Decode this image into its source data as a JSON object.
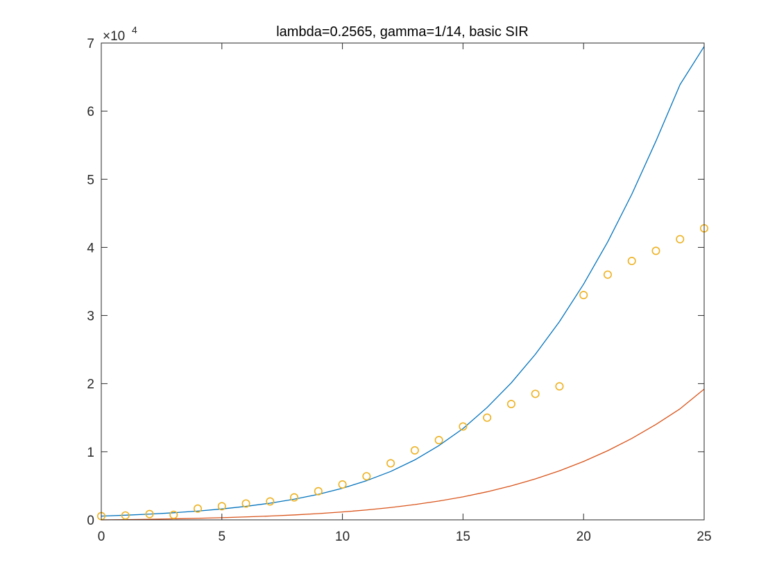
{
  "chart_data": {
    "type": "line",
    "title": "lambda=0.2565, gamma=1/14, basic SIR",
    "xlabel": "",
    "ylabel": "",
    "xlim": [
      0,
      25
    ],
    "ylim": [
      0,
      70000
    ],
    "x_ticks": [
      0,
      5,
      10,
      15,
      20,
      25
    ],
    "y_ticks": [
      0,
      10000,
      20000,
      30000,
      40000,
      50000,
      60000,
      70000
    ],
    "y_tick_labels": [
      "0",
      "1",
      "2",
      "3",
      "4",
      "5",
      "6",
      "7"
    ],
    "y_exponent": {
      "base": "×10",
      "power": "4"
    },
    "grid": false,
    "box": true,
    "series": [
      {
        "style": "line",
        "color": "#0072BD",
        "x": [
          0,
          1,
          2,
          3,
          4,
          5,
          6,
          7,
          8,
          9,
          10,
          11,
          12,
          13,
          14,
          15,
          16,
          17,
          18,
          19,
          20,
          21,
          22,
          23,
          24,
          25
        ],
        "y": [
          550,
          680,
          840,
          1040,
          1290,
          1600,
          1980,
          2450,
          3030,
          3750,
          4640,
          5750,
          7100,
          8800,
          10900,
          13400,
          16500,
          20100,
          24300,
          29100,
          34600,
          40800,
          47800,
          55600,
          63900,
          69500
        ]
      },
      {
        "style": "line",
        "color": "#D95319",
        "x": [
          0,
          1,
          2,
          3,
          4,
          5,
          6,
          7,
          8,
          9,
          10,
          11,
          12,
          13,
          14,
          15,
          16,
          17,
          18,
          19,
          20,
          21,
          22,
          23,
          24,
          25
        ],
        "y": [
          0,
          40,
          90,
          150,
          230,
          320,
          430,
          560,
          720,
          920,
          1160,
          1450,
          1810,
          2240,
          2760,
          3380,
          4120,
          4990,
          6010,
          7200,
          8570,
          10150,
          11950,
          14000,
          16300,
          19200
        ]
      },
      {
        "style": "markers",
        "marker": "circle",
        "color": "#EDB120",
        "x": [
          0,
          1,
          2,
          3,
          4,
          5,
          6,
          7,
          8,
          9,
          10,
          11,
          12,
          13,
          14,
          15,
          16,
          17,
          18,
          19,
          20,
          21,
          22,
          23,
          24,
          25
        ],
        "y": [
          548,
          643,
          850,
          742,
          1650,
          2000,
          2400,
          2700,
          3300,
          4200,
          5200,
          6400,
          8300,
          10200,
          11700,
          13700,
          15000,
          17000,
          18500,
          19600,
          33000,
          36000,
          38000,
          39500,
          41200,
          42800
        ]
      }
    ]
  }
}
